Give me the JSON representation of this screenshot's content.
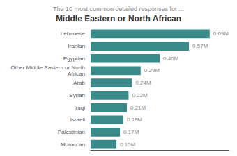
{
  "chart_data": {
    "type": "bar",
    "orientation": "horizontal",
    "title": "Middle Eastern or North African",
    "subtitle": "The 10 most common detailed responses for ...",
    "categories": [
      "Lebanese",
      "Iranian",
      "Egyptian",
      "Other Middle Eastern or North\nAfrican",
      "Arab",
      "Syrian",
      "Iraqi",
      "Israeli",
      "Palestinian",
      "Moroccan"
    ],
    "values": [
      0.69,
      0.57,
      0.4,
      0.29,
      0.24,
      0.22,
      0.21,
      0.19,
      0.17,
      0.15
    ],
    "value_labels": [
      "0.69M",
      "0.57M",
      "0.40M",
      "0.29M",
      "0.24M",
      "0.22M",
      "0.21M",
      "0.19M",
      "0.17M",
      "0.15M"
    ],
    "data_labels": true,
    "color": "#3a8a8a",
    "xlim": [
      0,
      0.8
    ],
    "tick_labels": "y",
    "grid": false
  }
}
